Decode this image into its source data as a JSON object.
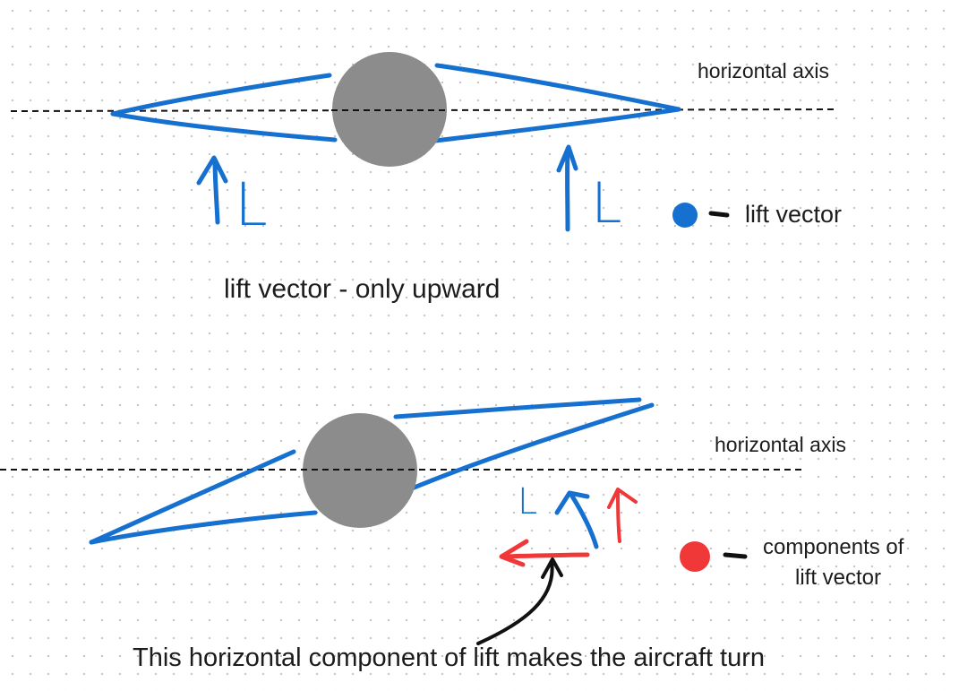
{
  "top": {
    "axis_label": "horizontal axis",
    "left_lift_letter": "L",
    "right_lift_letter": "L",
    "caption": "lift vector - only upward"
  },
  "legend": {
    "lift_label": "lift vector",
    "components_label_line1": "components of",
    "components_label_line2": "lift vector"
  },
  "bottom": {
    "axis_label": "horizontal axis",
    "lift_letter": "L",
    "caption": "This horizontal component of lift makes the aircraft turn"
  },
  "colors": {
    "lift_blue": "#1670cf",
    "component_red": "#f03838",
    "body_gray": "#8c8c8c",
    "axis_black": "#111111"
  }
}
